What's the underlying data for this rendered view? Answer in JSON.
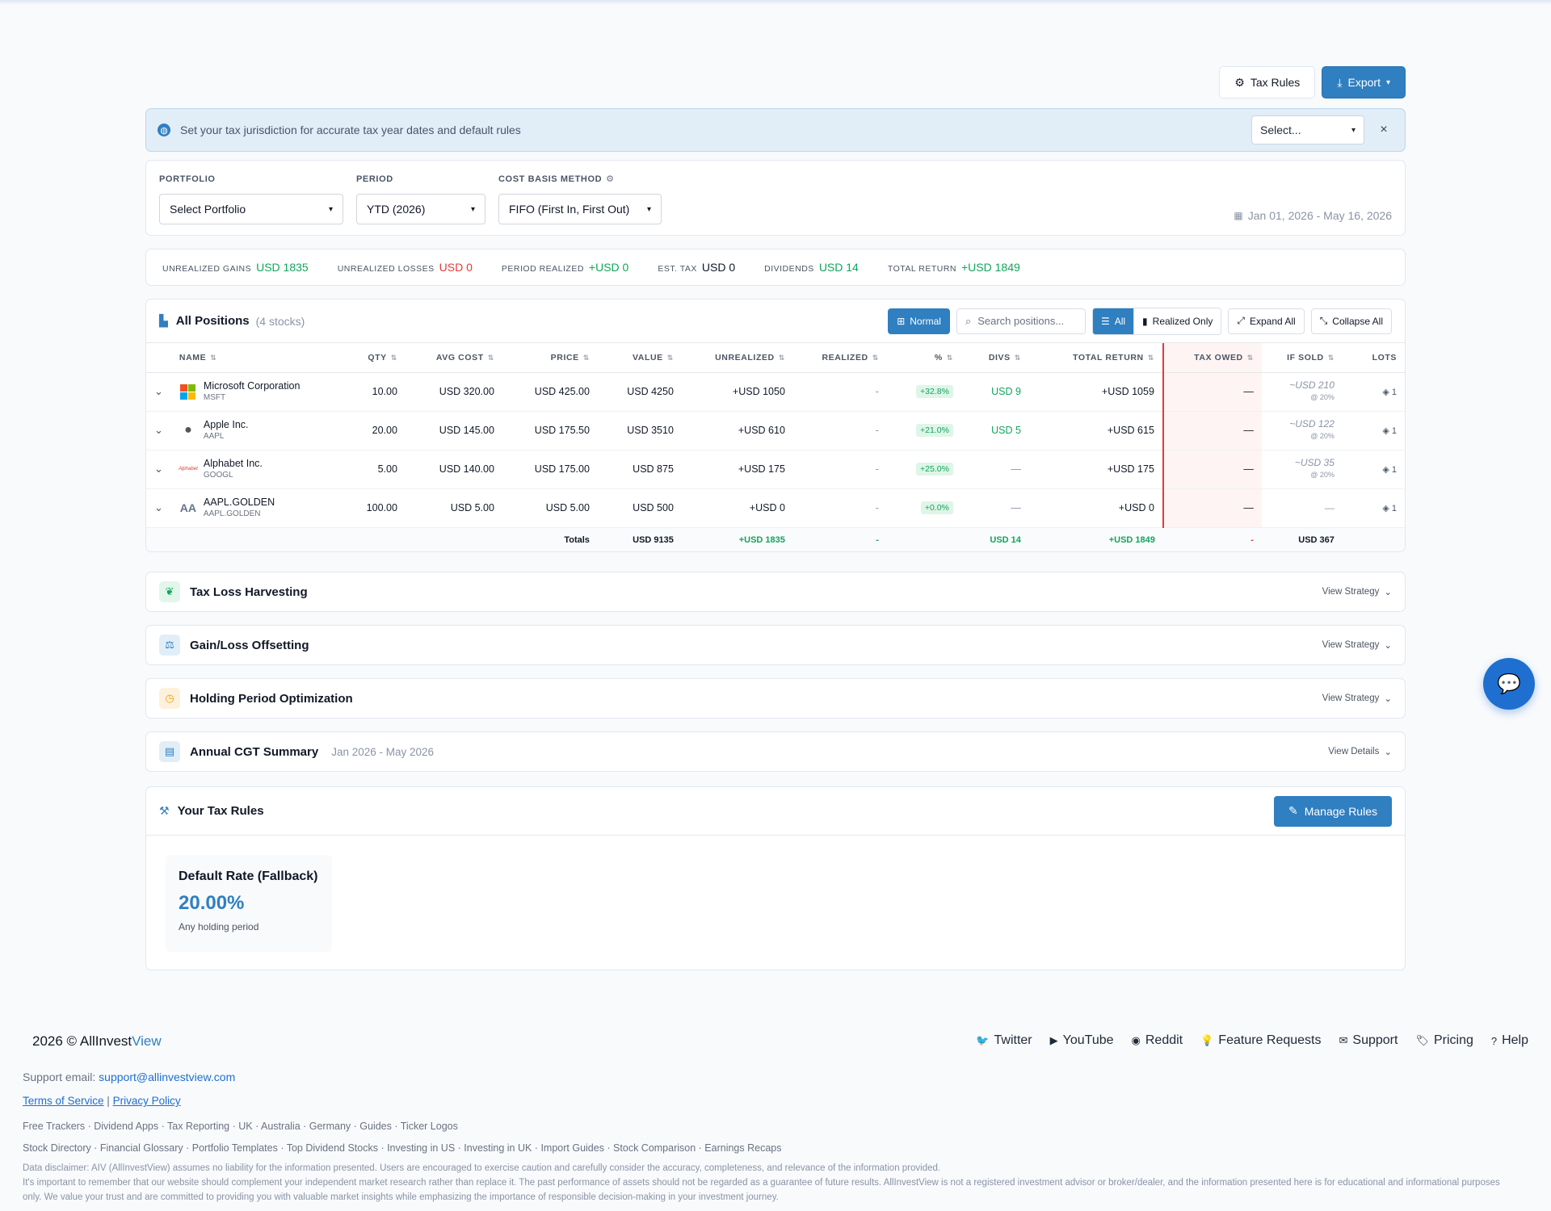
{
  "toolbar": {
    "tax_rules_label": "Tax Rules",
    "export_label": "Export"
  },
  "banner": {
    "message": "Set your tax jurisdiction for accurate tax year dates and default rules",
    "select_value": "Select...",
    "close": "×"
  },
  "filters": {
    "portfolio_label": "PORTFOLIO",
    "portfolio_value": "Select Portfolio",
    "period_label": "PERIOD",
    "period_value": "YTD (2026)",
    "method_label": "COST BASIS METHOD",
    "method_value": "FIFO (First In, First Out)",
    "date_range": "Jan 01, 2026 - May 16, 2026"
  },
  "summary": [
    {
      "label": "UNREALIZED GAINS",
      "value": "USD 1835",
      "color": "green"
    },
    {
      "label": "UNREALIZED LOSSES",
      "value": "USD 0",
      "color": "red"
    },
    {
      "label": "PERIOD REALIZED",
      "value": "+USD 0",
      "color": "green"
    },
    {
      "label": "EST. TAX",
      "value": "USD 0",
      "color": "dark"
    },
    {
      "label": "DIVIDENDS",
      "value": "USD 14",
      "color": "green"
    },
    {
      "label": "TOTAL RETURN",
      "value": "+USD 1849",
      "color": "green"
    }
  ],
  "positions": {
    "title": "All Positions",
    "count": "(4 stocks)",
    "normal_label": "Normal",
    "search_placeholder": "Search positions...",
    "all_label": "All",
    "realized_label": "Realized Only",
    "expand_label": "Expand All",
    "collapse_label": "Collapse All",
    "columns": [
      "NAME",
      "QTY",
      "AVG COST",
      "PRICE",
      "VALUE",
      "UNREALIZED",
      "REALIZED",
      "%",
      "DIVS",
      "TOTAL RETURN",
      "TAX OWED",
      "IF SOLD",
      "LOTS"
    ],
    "rows": [
      {
        "name": "Microsoft Corporation",
        "ticker": "MSFT",
        "logo": "msft",
        "qty": "10.00",
        "avg": "USD 320.00",
        "price": "USD 425.00",
        "value": "USD 4250",
        "unrealized": "+USD 1050",
        "realized": "-",
        "pct": "+32.8%",
        "divs": "USD 9",
        "divs_green": true,
        "total": "+USD 1059",
        "tax": "—",
        "ifsold": "~USD 210",
        "ifsold_rate": "@ 20%",
        "lots": "1"
      },
      {
        "name": "Apple Inc.",
        "ticker": "AAPL",
        "logo": "aapl",
        "qty": "20.00",
        "avg": "USD 145.00",
        "price": "USD 175.50",
        "value": "USD 3510",
        "unrealized": "+USD 610",
        "realized": "-",
        "pct": "+21.0%",
        "divs": "USD 5",
        "divs_green": true,
        "total": "+USD 615",
        "tax": "—",
        "ifsold": "~USD 122",
        "ifsold_rate": "@ 20%",
        "lots": "1"
      },
      {
        "name": "Alphabet Inc.",
        "ticker": "GOOGL",
        "logo": "googl",
        "qty": "5.00",
        "avg": "USD 140.00",
        "price": "USD 175.00",
        "value": "USD 875",
        "unrealized": "+USD 175",
        "realized": "-",
        "pct": "+25.0%",
        "divs": "—",
        "divs_green": false,
        "total": "+USD 175",
        "tax": "—",
        "ifsold": "~USD 35",
        "ifsold_rate": "@ 20%",
        "lots": "1"
      },
      {
        "name": "AAPL.GOLDEN",
        "ticker": "AAPL.GOLDEN",
        "logo": "aa",
        "qty": "100.00",
        "avg": "USD 5.00",
        "price": "USD 5.00",
        "value": "USD 500",
        "unrealized": "+USD 0",
        "realized": "-",
        "pct": "+0.0%",
        "divs": "—",
        "divs_green": false,
        "total": "+USD 0",
        "tax": "—",
        "ifsold": "—",
        "ifsold_rate": "",
        "lots": "1"
      }
    ],
    "totals": {
      "label": "Totals",
      "value": "USD 9135",
      "unrealized": "+USD 1835",
      "realized": "-",
      "divs": "USD 14",
      "total": "+USD 1849",
      "tax": "-",
      "ifsold": "USD 367"
    }
  },
  "strategies": [
    {
      "title": "Tax Loss Harvesting",
      "subtitle": "",
      "action": "View Strategy",
      "icon": "seedling-icon",
      "bg": "#e3f6ec",
      "fg": "#10a55b",
      "glyph": "❦"
    },
    {
      "title": "Gain/Loss Offsetting",
      "subtitle": "",
      "action": "View Strategy",
      "icon": "balance-scale-icon",
      "bg": "#e1eef8",
      "fg": "#2f7fc1",
      "glyph": "⚖"
    },
    {
      "title": "Holding Period Optimization",
      "subtitle": "",
      "action": "View Strategy",
      "icon": "clock-icon",
      "bg": "#fdf1dc",
      "fg": "#f59e0b",
      "glyph": "◷"
    },
    {
      "title": "Annual CGT Summary",
      "subtitle": "Jan 2026 - May 2026",
      "action": "View Details",
      "icon": "file-invoice-icon",
      "bg": "#e1eef8",
      "fg": "#2f7fc1",
      "glyph": "▤"
    }
  ],
  "tax_rules": {
    "title": "Your Tax Rules",
    "manage_label": "Manage Rules",
    "card_name": "Default Rate (Fallback)",
    "card_rate": "20.00%",
    "card_note": "Any holding period"
  },
  "footer": {
    "year": "2026 ©",
    "brand_a": "AllInvest",
    "brand_b": "View",
    "links": [
      {
        "label": "Twitter",
        "icon": "twitter-icon",
        "glyph": "🐦"
      },
      {
        "label": "YouTube",
        "icon": "youtube-icon",
        "glyph": "▶"
      },
      {
        "label": "Reddit",
        "icon": "reddit-icon",
        "glyph": "◉"
      },
      {
        "label": "Feature Requests",
        "icon": "lightbulb-icon",
        "glyph": "💡"
      },
      {
        "label": "Support",
        "icon": "envelope-icon",
        "glyph": "✉"
      },
      {
        "label": "Pricing",
        "icon": "tags-icon",
        "glyph": "🏷"
      },
      {
        "label": "Help",
        "icon": "question-icon",
        "glyph": "?"
      }
    ],
    "support_prefix": "Support email:",
    "support_email": "support@allinvestview.com",
    "terms": "Terms of Service",
    "privacy": "Privacy Policy",
    "line1": "Free Trackers · Dividend Apps · Tax Reporting · UK · Australia · Germany · Guides · Ticker Logos",
    "line2": "Stock Directory · Financial Glossary · Portfolio Templates · Top Dividend Stocks · Investing in US · Investing in UK · Import Guides · Stock Comparison · Earnings Recaps",
    "disclaimer1": "Data disclaimer: AIV (AllInvestView) assumes no liability for the information presented. Users are encouraged to exercise caution and carefully consider the accuracy, completeness, and relevance of the information provided.",
    "disclaimer2": "It's important to remember that our website should complement your independent market research rather than replace it. The past performance of assets should not be regarded as a guarantee of future results. AllInvestView is not a registered investment advisor or broker/dealer, and the information presented here is for educational and informational purposes only. We value your trust and are committed to providing you with valuable market insights while emphasizing the importance of responsible decision-making in your investment journey."
  }
}
